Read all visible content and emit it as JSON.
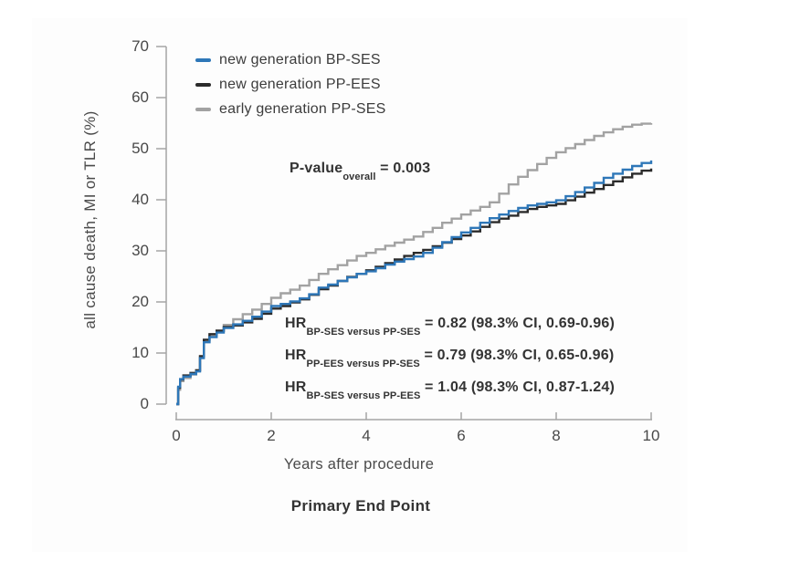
{
  "chart_data": {
    "type": "line",
    "subtype": "kaplan-meier-step-curves",
    "title": "Primary End Point",
    "xlabel": "Years after procedure",
    "ylabel": "all cause death, MI or TLR (%)",
    "xlim": [
      0,
      10
    ],
    "ylim": [
      0,
      70
    ],
    "xticks": [
      0,
      2,
      4,
      6,
      8,
      10
    ],
    "yticks": [
      0,
      10,
      20,
      30,
      40,
      50,
      60,
      70
    ],
    "grid": false,
    "legend_position": "top-left-inside",
    "axis_color": "#a5a5a5",
    "x": [
      0,
      0.04,
      0.08,
      0.15,
      0.3,
      0.42,
      0.5,
      0.58,
      0.7,
      0.85,
      1.0,
      1.2,
      1.4,
      1.6,
      1.8,
      2.0,
      2.2,
      2.4,
      2.6,
      2.8,
      3.0,
      3.2,
      3.4,
      3.6,
      3.8,
      4.0,
      4.2,
      4.4,
      4.6,
      4.8,
      5.0,
      5.2,
      5.4,
      5.6,
      5.8,
      6.0,
      6.2,
      6.4,
      6.6,
      6.8,
      7.0,
      7.2,
      7.4,
      7.6,
      7.8,
      8.0,
      8.2,
      8.4,
      8.6,
      8.8,
      9.0,
      9.2,
      9.4,
      9.6,
      9.8,
      10.0
    ],
    "series": [
      {
        "name": "new generation BP-SES",
        "color": "#2e77b8",
        "values": [
          0,
          3.4,
          4.9,
          5.4,
          5.9,
          6.4,
          9.0,
          12.1,
          13.1,
          14.0,
          14.9,
          15.6,
          16.3,
          17.1,
          18.1,
          19.2,
          19.6,
          20.1,
          20.7,
          21.5,
          22.8,
          23.4,
          24.1,
          24.8,
          25.5,
          26.0,
          26.6,
          27.3,
          27.9,
          28.4,
          28.9,
          29.6,
          30.6,
          31.7,
          32.7,
          33.6,
          34.5,
          35.5,
          36.4,
          37.1,
          37.8,
          38.4,
          38.9,
          39.2,
          39.5,
          39.9,
          40.7,
          41.5,
          42.4,
          43.3,
          44.3,
          45.1,
          45.9,
          46.6,
          47.2,
          47.7
        ],
        "value_at_10y": 47.7
      },
      {
        "name": "new generation PP-EES",
        "color": "#2b2b2b",
        "values": [
          0,
          3.2,
          4.8,
          5.6,
          6.1,
          6.6,
          9.4,
          12.6,
          13.7,
          14.4,
          15.1,
          15.4,
          16.0,
          16.7,
          17.7,
          18.7,
          19.2,
          19.9,
          20.5,
          21.4,
          22.5,
          23.2,
          24.1,
          24.9,
          25.5,
          26.2,
          26.9,
          27.6,
          28.3,
          29.0,
          29.6,
          30.2,
          30.9,
          31.6,
          32.3,
          33.0,
          33.8,
          34.7,
          35.6,
          36.3,
          36.9,
          37.6,
          38.2,
          38.6,
          38.9,
          39.2,
          39.9,
          40.6,
          41.4,
          42.1,
          42.9,
          43.6,
          44.4,
          45.1,
          45.7,
          46.1
        ],
        "value_at_10y": 46.1
      },
      {
        "name": "early generation PP-SES",
        "color": "#a2a2a2",
        "values": [
          0,
          2.8,
          4.5,
          5.1,
          5.8,
          6.6,
          9.3,
          12.3,
          13.4,
          14.3,
          15.5,
          16.6,
          17.6,
          18.5,
          19.6,
          20.8,
          21.7,
          22.4,
          23.2,
          24.3,
          25.5,
          26.4,
          27.2,
          28.1,
          29.0,
          29.6,
          30.3,
          31.0,
          31.6,
          32.2,
          32.8,
          33.7,
          34.5,
          35.5,
          36.3,
          37.1,
          37.9,
          38.6,
          39.5,
          41.2,
          43.0,
          44.5,
          45.8,
          47.0,
          48.2,
          49.3,
          50.1,
          50.9,
          51.7,
          52.5,
          53.2,
          53.8,
          54.3,
          54.7,
          54.9,
          55.0
        ],
        "value_at_10y": 55.0
      }
    ],
    "annotations": {
      "p_value": {
        "prefix": "P-value",
        "subscript": "overall",
        "value": " = 0.003"
      },
      "hr_lines": [
        {
          "prefix": "HR",
          "subscript": "BP-SES versus PP-SES",
          "value": " = 0.82 (98.3% CI, 0.69-0.96)"
        },
        {
          "prefix": "HR",
          "subscript": "PP-EES versus PP-SES",
          "value": " = 0.79 (98.3% CI, 0.65-0.96)"
        },
        {
          "prefix": "HR",
          "subscript": "BP-SES versus PP-EES",
          "value": " = 1.04 (98.3% CI, 0.87-1.24)"
        }
      ]
    }
  }
}
